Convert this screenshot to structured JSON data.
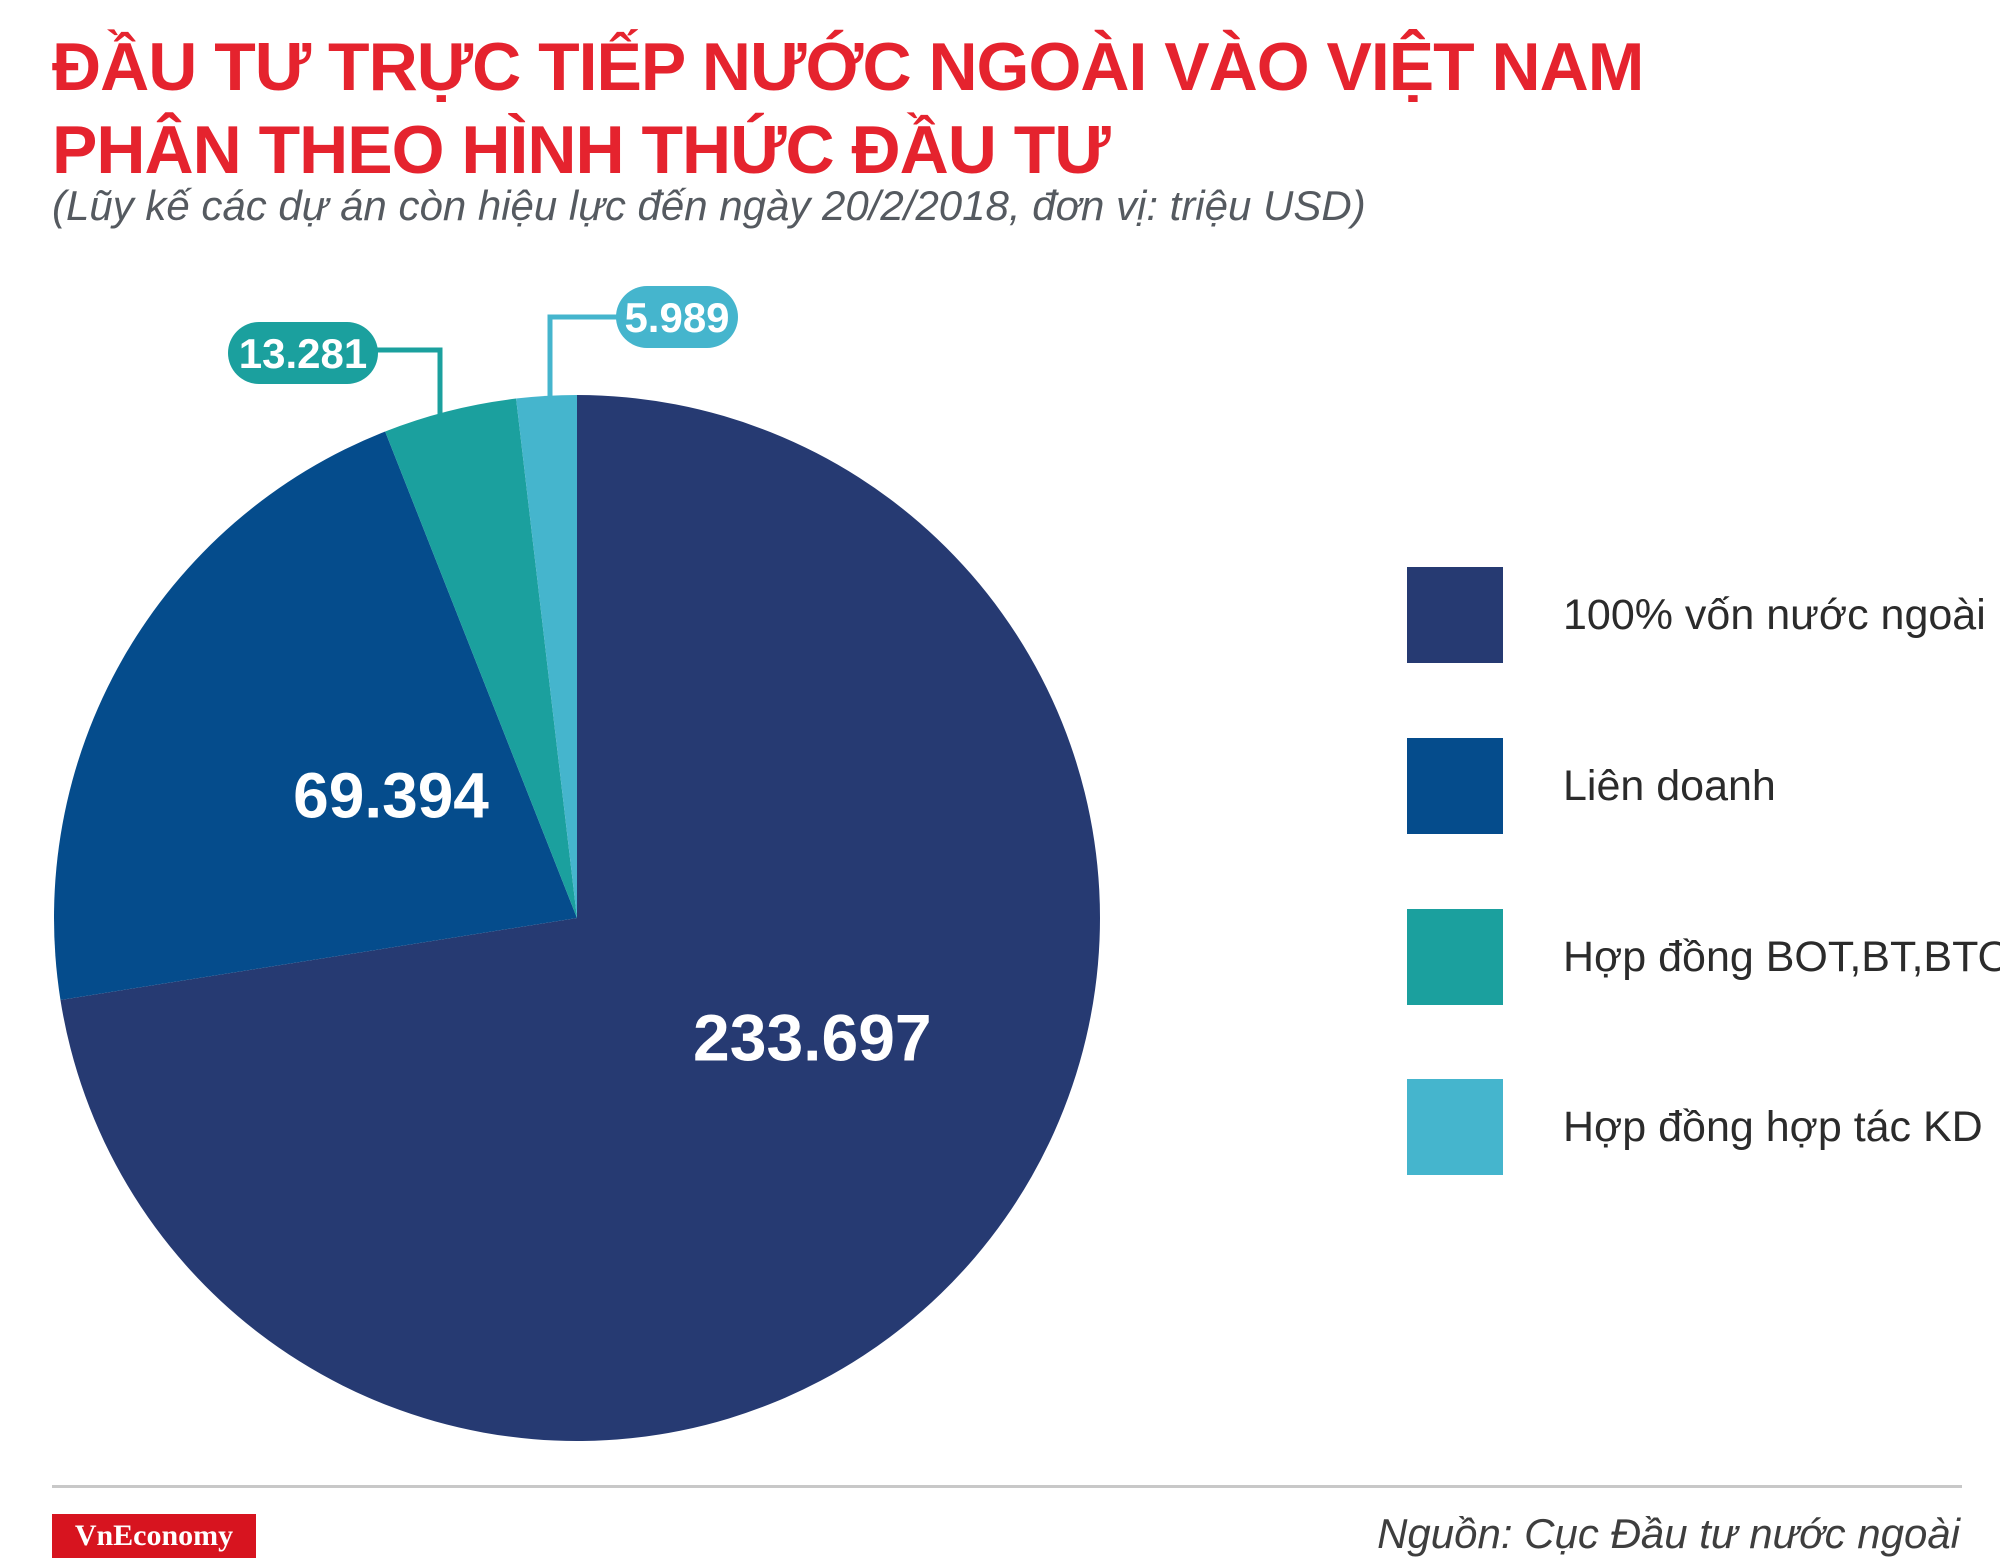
{
  "header": {
    "title_line1": "ĐẦU TƯ TRỰC TIẾP NƯỚC NGOÀI VÀO VIỆT NAM",
    "title_line2": "PHÂN THEO HÌNH THỨC ĐẦU TƯ",
    "subtitle": "(Lũy kế các dự án còn hiệu lực đến ngày 20/2/2018, đơn vị: triệu USD)"
  },
  "chart_data": {
    "type": "pie",
    "title": "ĐẦU TƯ TRỰC TIẾP NƯỚC NGOÀI VÀO VIỆT NAM PHÂN THEO HÌNH THỨC ĐẦU TƯ",
    "subtitle": "(Lũy kế các dự án còn hiệu lực đến ngày 20/2/2018, đơn vị: triệu USD)",
    "legend_position": "right",
    "slices": [
      {
        "label": "100% vốn nước ngoài",
        "value": 233697,
        "display": "233.697",
        "color": "#263a72"
      },
      {
        "label": "Liên doanh",
        "value": 69394,
        "display": "69.394",
        "color": "#054c8c"
      },
      {
        "label": "Hợp đồng BOT,BT,BTO",
        "value": 13281,
        "display": "13.281",
        "color": "#1ba09e"
      },
      {
        "label": "Hợp đồng hợp tác KD",
        "value": 5989,
        "display": "5.989",
        "color": "#45b5cd"
      }
    ]
  },
  "footer": {
    "logo": "VnEconomy",
    "source": "Nguồn: Cục Đầu tư nước ngoài"
  }
}
